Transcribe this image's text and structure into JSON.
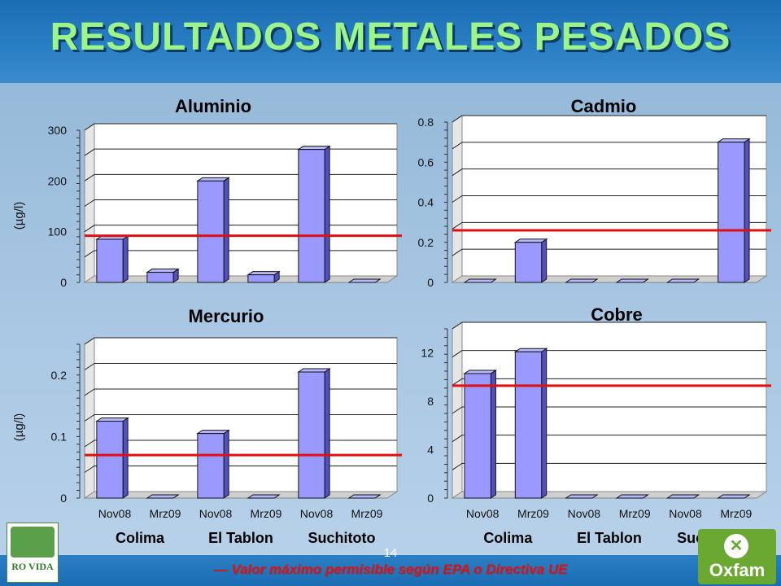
{
  "title": "RESULTADOS METALES PESADOS",
  "page_number": "14",
  "footnote": "— Valor máximo permisible según EPA o Directiva UE",
  "logos": {
    "left": "RO VIDA",
    "right": "Oxfam"
  },
  "colors": {
    "bar": "#9999ff",
    "limit_line": "#e01010",
    "title": "#9df58a"
  },
  "chart_data": [
    {
      "id": "aluminio",
      "type": "bar",
      "title": "Aluminio",
      "ylabel": "(µg/l)",
      "ylim": [
        0,
        300
      ],
      "yticks": [
        "0",
        "100",
        "200",
        "300"
      ],
      "categories": [
        "Nov08",
        "Mrz09",
        "Nov08",
        "Mrz09",
        "Nov08",
        "Mrz09"
      ],
      "groups": [
        "Colima",
        "El Tablon",
        "Suchitoto"
      ],
      "values": [
        85,
        20,
        200,
        15,
        262,
        0
      ],
      "limit": 92
    },
    {
      "id": "cadmio",
      "type": "bar",
      "title": "Cadmio",
      "ylabel": "",
      "ylim": [
        0,
        0.8
      ],
      "yticks": [
        "0",
        "0.2",
        "0.4",
        "0.6",
        "0.8"
      ],
      "categories": [
        "Nov08",
        "Mrz09",
        "Nov08",
        "Mrz09",
        "Nov08",
        "Mrz09"
      ],
      "groups": [
        "Colima",
        "El Tablon",
        "Suchitoto"
      ],
      "values": [
        0,
        0.2,
        0,
        0,
        0,
        0.7
      ],
      "limit": 0.26
    },
    {
      "id": "mercurio",
      "type": "bar",
      "title": "Mercurio",
      "ylabel": "(µg/l)",
      "ylim": [
        0,
        0.25
      ],
      "yticks": [
        "0",
        "0.1",
        "0.2"
      ],
      "categories": [
        "Nov08",
        "Mrz09",
        "Nov08",
        "Mrz09",
        "Nov08",
        "Mrz09"
      ],
      "groups": [
        "Colima",
        "El Tablon",
        "Suchitoto"
      ],
      "values": [
        0.125,
        0,
        0.105,
        0,
        0.205,
        0
      ],
      "limit": 0.07
    },
    {
      "id": "cobre",
      "type": "bar",
      "title": "Cobre",
      "ylabel": "",
      "ylim": [
        0,
        14
      ],
      "yticks": [
        "0",
        "4",
        "8",
        "12"
      ],
      "categories": [
        "Nov08",
        "Mrz09",
        "Nov08",
        "Mrz09",
        "Nov08",
        "Mrz09"
      ],
      "groups": [
        "Colima",
        "El Tablon",
        "Suchitoto"
      ],
      "values": [
        10.3,
        12.1,
        0,
        0,
        0,
        0
      ],
      "limit": 9.3
    }
  ]
}
